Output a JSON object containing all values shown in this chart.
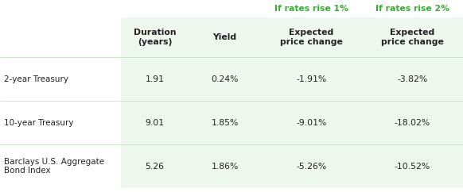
{
  "rows": [
    [
      "2-year Treasury",
      "1.91",
      "0.24%",
      "-1.91%",
      "-3.82%"
    ],
    [
      "10-year Treasury",
      "9.01",
      "1.85%",
      "-9.01%",
      "-18.02%"
    ],
    [
      "Barclays U.S. Aggregate\nBond Index",
      "5.26",
      "1.86%",
      "-5.26%",
      "-10.52%"
    ]
  ],
  "col_headers": [
    "",
    "Duration\n(years)",
    "Yield",
    "Expected\nprice change",
    "Expected\nprice change"
  ],
  "header_group_1": "If rates rise 1%",
  "header_group_2": "If rates rise 2%",
  "green_header_color": "#3aaa35",
  "light_green_bg": "#eef7ee",
  "white_bg": "#ffffff",
  "dark_text": "#222222",
  "fig_width": 5.82,
  "fig_height": 2.42,
  "dpi": 100
}
